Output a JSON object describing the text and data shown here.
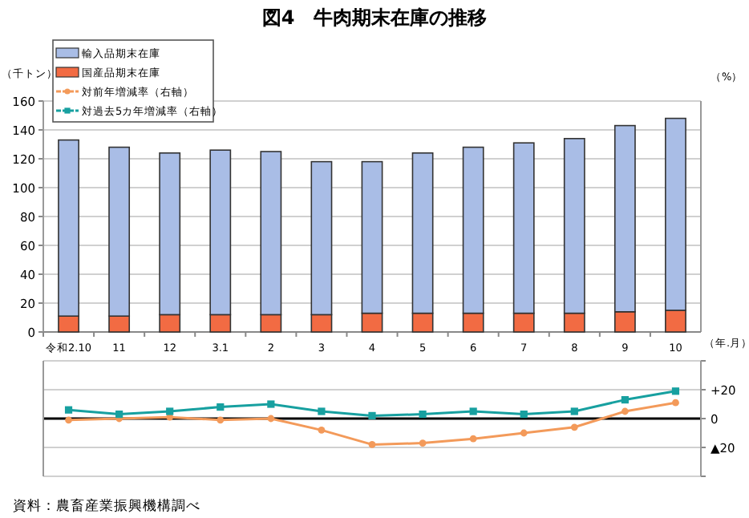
{
  "chart_data": [
    {
      "type": "bar",
      "stacked": true,
      "title": "図4　牛肉期末在庫の推移",
      "ylabel": "（千トン）",
      "xlabel": "（年.月）",
      "annotations": [
        "（%）",
        "資料：農畜産業振興機構調べ"
      ],
      "categories": [
        "令和2.10",
        "11",
        "12",
        "3.1",
        "2",
        "3",
        "4",
        "5",
        "6",
        "7",
        "8",
        "9",
        "10"
      ],
      "series": [
        {
          "name": "国産品期末在庫",
          "color": "#f26b43",
          "values": [
            11,
            11,
            12,
            12,
            12,
            12,
            13,
            13,
            13,
            13,
            13,
            14,
            15
          ]
        },
        {
          "name": "輸入品期末在庫",
          "color": "#a9bde6",
          "values": [
            122,
            117,
            112,
            114,
            113,
            106,
            105,
            111,
            115,
            118,
            121,
            129,
            133
          ]
        }
      ],
      "ylim": [
        0,
        160
      ],
      "yticks": [
        0,
        20,
        40,
        60,
        80,
        100,
        120,
        140,
        160
      ],
      "grid": "y",
      "legend": "top left"
    },
    {
      "type": "line",
      "tick_labels": "y",
      "categories": [
        null,
        null,
        null,
        null,
        null,
        null,
        null,
        null,
        null,
        null,
        null,
        null,
        null
      ],
      "series": [
        {
          "name": "対前年増減率（右軸）",
          "marker": "circle",
          "color": "#f39a5a",
          "values": [
            -1,
            0,
            1,
            -1,
            0,
            -8,
            -18,
            -17,
            -14,
            -10,
            -6,
            5,
            11
          ]
        },
        {
          "name": "対過去5カ年増減率（右軸）",
          "marker": "square",
          "color": "#17a0a0",
          "values": [
            6,
            3,
            5,
            8,
            10,
            5,
            2,
            3,
            5,
            3,
            5,
            13,
            19
          ]
        }
      ],
      "ylim": [
        -40,
        40
      ],
      "yticks": [
        {
          "value": 40,
          "label": null
        },
        {
          "value": 20,
          "label": "+20"
        },
        0,
        {
          "value": -20,
          "label": "▲20"
        },
        {
          "value": -40,
          "label": null
        }
      ],
      "grid": "y",
      "legend": "top left"
    }
  ]
}
